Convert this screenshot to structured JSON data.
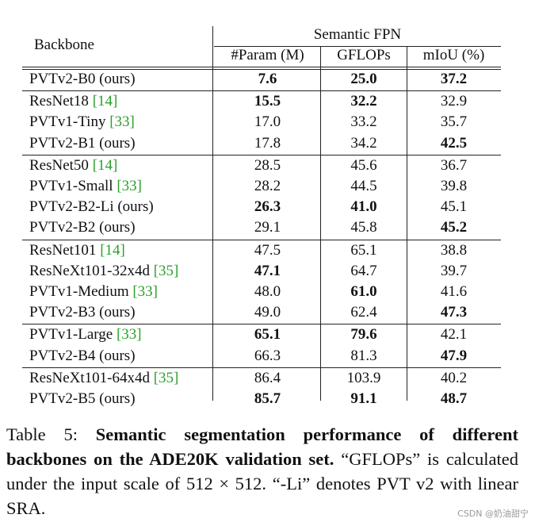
{
  "table": {
    "header": {
      "backbone": "Backbone",
      "group": "Semantic FPN",
      "columns": [
        "#Param (M)",
        "GFLOPs",
        "mIoU (%)"
      ]
    },
    "groups": [
      [
        {
          "backbone": "PVTv2-B0 (ours)",
          "cells": [
            {
              "text": "7.6",
              "bold": true
            },
            {
              "text": "25.0",
              "bold": true
            },
            {
              "text": "37.2",
              "bold": true
            }
          ]
        }
      ],
      [
        {
          "backbone": "ResNet18",
          "cite": "[14]",
          "cells": [
            {
              "text": "15.5",
              "bold": true
            },
            {
              "text": "32.2",
              "bold": true
            },
            {
              "text": "32.9",
              "bold": false
            }
          ]
        },
        {
          "backbone": "PVTv1-Tiny",
          "cite": "[33]",
          "cells": [
            {
              "text": "17.0",
              "bold": false
            },
            {
              "text": "33.2",
              "bold": false
            },
            {
              "text": "35.7",
              "bold": false
            }
          ]
        },
        {
          "backbone": "PVTv2-B1 (ours)",
          "cells": [
            {
              "text": "17.8",
              "bold": false
            },
            {
              "text": "34.2",
              "bold": false
            },
            {
              "text": "42.5",
              "bold": true
            }
          ]
        }
      ],
      [
        {
          "backbone": "ResNet50",
          "cite": "[14]",
          "cells": [
            {
              "text": "28.5",
              "bold": false
            },
            {
              "text": "45.6",
              "bold": false
            },
            {
              "text": "36.7",
              "bold": false
            }
          ]
        },
        {
          "backbone": "PVTv1-Small",
          "cite": "[33]",
          "cells": [
            {
              "text": "28.2",
              "bold": false
            },
            {
              "text": "44.5",
              "bold": false
            },
            {
              "text": "39.8",
              "bold": false
            }
          ]
        },
        {
          "backbone": "PVTv2-B2-Li (ours)",
          "cells": [
            {
              "text": "26.3",
              "bold": true
            },
            {
              "text": "41.0",
              "bold": true
            },
            {
              "text": "45.1",
              "bold": false
            }
          ]
        },
        {
          "backbone": "PVTv2-B2 (ours)",
          "cells": [
            {
              "text": "29.1",
              "bold": false
            },
            {
              "text": "45.8",
              "bold": false
            },
            {
              "text": "45.2",
              "bold": true
            }
          ]
        }
      ],
      [
        {
          "backbone": "ResNet101",
          "cite": "[14]",
          "cells": [
            {
              "text": "47.5",
              "bold": false
            },
            {
              "text": "65.1",
              "bold": false
            },
            {
              "text": "38.8",
              "bold": false
            }
          ]
        },
        {
          "backbone": "ResNeXt101-32x4d",
          "cite": "[35]",
          "cells": [
            {
              "text": "47.1",
              "bold": true
            },
            {
              "text": "64.7",
              "bold": false
            },
            {
              "text": "39.7",
              "bold": false
            }
          ]
        },
        {
          "backbone": "PVTv1-Medium",
          "cite": "[33]",
          "cells": [
            {
              "text": "48.0",
              "bold": false
            },
            {
              "text": "61.0",
              "bold": true
            },
            {
              "text": "41.6",
              "bold": false
            }
          ]
        },
        {
          "backbone": "PVTv2-B3 (ours)",
          "cells": [
            {
              "text": "49.0",
              "bold": false
            },
            {
              "text": "62.4",
              "bold": false
            },
            {
              "text": "47.3",
              "bold": true
            }
          ]
        }
      ],
      [
        {
          "backbone": "PVTv1-Large",
          "cite": "[33]",
          "cells": [
            {
              "text": "65.1",
              "bold": true
            },
            {
              "text": "79.6",
              "bold": true
            },
            {
              "text": "42.1",
              "bold": false
            }
          ]
        },
        {
          "backbone": "PVTv2-B4 (ours)",
          "cells": [
            {
              "text": "66.3",
              "bold": false
            },
            {
              "text": "81.3",
              "bold": false
            },
            {
              "text": "47.9",
              "bold": true
            }
          ]
        }
      ],
      [
        {
          "backbone": "ResNeXt101-64x4d",
          "cite": "[35]",
          "cells": [
            {
              "text": "86.4",
              "bold": false
            },
            {
              "text": "103.9",
              "bold": false
            },
            {
              "text": "40.2",
              "bold": false
            }
          ]
        },
        {
          "backbone": "PVTv2-B5 (ours)",
          "cells": [
            {
              "text": "85.7",
              "bold": true
            },
            {
              "text": "91.1",
              "bold": true
            },
            {
              "text": "48.7",
              "bold": true
            }
          ]
        }
      ]
    ]
  },
  "caption": {
    "label": "Table 5:",
    "bold": "Semantic segmentation performance of different backbones on the ADE20K validation set.",
    "text": "“GFLOPs” is calculated under the input scale of 512 × 512. “-Li” denotes PVT v2 with linear SRA."
  },
  "watermark": "CSDN @奶油甜宁"
}
